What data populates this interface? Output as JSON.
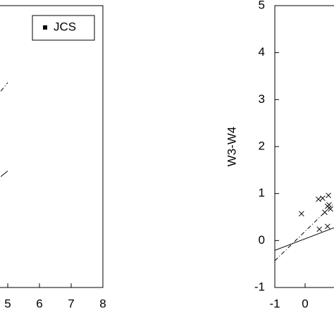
{
  "chart_data": [
    {
      "type": "scatter",
      "xlim": [
        4.5,
        8
      ],
      "xticks": [
        5,
        6,
        7,
        8
      ],
      "ylim": [
        -1,
        5
      ],
      "legend": "top-right",
      "series": [
        {
          "name": "JCS",
          "marker": "square",
          "color": "#000",
          "x": [],
          "y": []
        },
        {
          "line": "dashdot",
          "color": "#000",
          "x": [
            4.78,
            5.0
          ],
          "y": [
            3.18,
            3.36
          ]
        },
        {
          "line": "solid",
          "color": "#000",
          "x": [
            4.78,
            5.0
          ],
          "y": [
            1.36,
            1.48
          ]
        }
      ]
    },
    {
      "type": "scatter",
      "y_label": "W3-W4",
      "xlim": [
        -1,
        2
      ],
      "xticks": [
        -1,
        0
      ],
      "ylim": [
        -1,
        5
      ],
      "yticks": [
        -1,
        0,
        1,
        2,
        3,
        4,
        5
      ],
      "series": [
        {
          "marker": "x",
          "color": "#000",
          "x": [
            -0.12,
            0.44,
            0.58,
            0.77,
            0.74,
            0.65,
            0.84,
            0.47,
            0.74,
            0.79
          ],
          "y": [
            0.57,
            0.88,
            0.9,
            0.96,
            0.73,
            0.6,
            0.67,
            0.24,
            0.3,
            0.76
          ]
        },
        {
          "line": "solid",
          "color": "#000",
          "x": [
            -1,
            0.95
          ],
          "y": [
            -0.21,
            0.27
          ]
        },
        {
          "line": "dashdot",
          "color": "#000",
          "x": [
            -1,
            0.95
          ],
          "y": [
            -0.43,
            0.79
          ]
        }
      ]
    }
  ]
}
